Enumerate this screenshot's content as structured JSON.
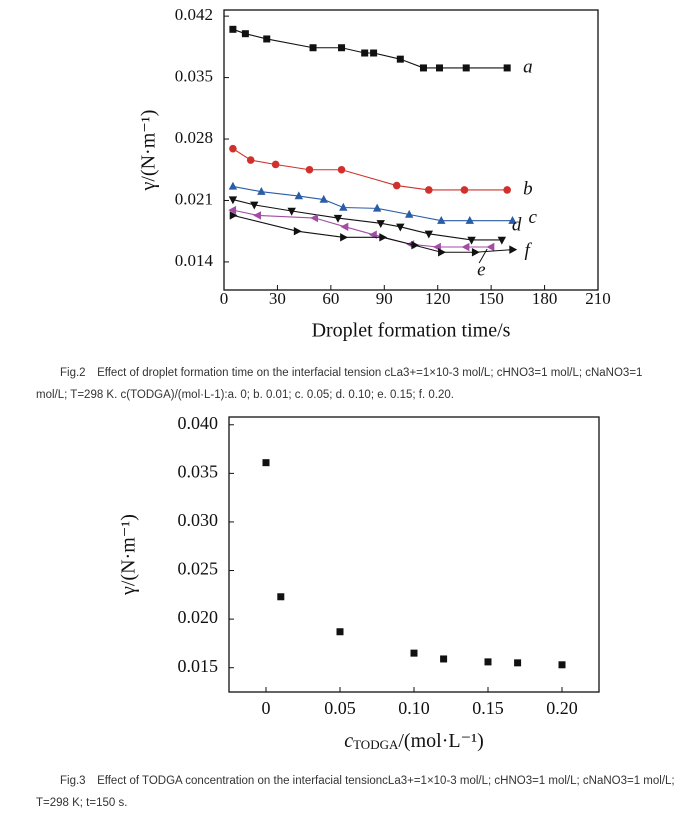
{
  "chart_data": [
    {
      "type": "line",
      "x_label": "Droplet formation time/s",
      "y_label": "γ/(N·m⁻¹)",
      "caption": "Fig.2　Effect of droplet formation time on the interfacial tension cLa3+=1×10-3 mol/L; cHNO3=1 mol/L; cNaNO3=1 mol/L; T=298 K. c(TODGA)/(mol·L-1):a. 0; b. 0.01; c. 0.05; d. 0.10; e. 0.15; f. 0.20.",
      "xlim": [
        0,
        210
      ],
      "xticks": [
        0,
        30,
        60,
        90,
        120,
        150,
        180,
        210
      ],
      "ylim": [
        0.0108,
        0.0427
      ],
      "yticks": [
        0.014,
        0.021,
        0.028,
        0.035,
        0.042
      ],
      "series": [
        {
          "name": "a",
          "color": "#111111",
          "marker": "square",
          "x": [
            5,
            12,
            24,
            50,
            66,
            79,
            84,
            99,
            112,
            121,
            136,
            159
          ],
          "values": [
            0.0405,
            0.04,
            0.0394,
            0.0384,
            0.0384,
            0.0378,
            0.0378,
            0.0371,
            0.0361,
            0.0361,
            0.0361,
            0.0361
          ]
        },
        {
          "name": "b",
          "color": "#d0312d",
          "marker": "circle",
          "x": [
            5,
            15,
            29,
            48,
            66,
            97,
            115,
            135,
            159
          ],
          "values": [
            0.0269,
            0.0256,
            0.0251,
            0.0245,
            0.0245,
            0.0227,
            0.0222,
            0.0222,
            0.0222
          ]
        },
        {
          "name": "c",
          "color": "#2a5ca8",
          "marker": "triangle-up",
          "x": [
            5,
            21,
            42,
            56,
            67,
            86,
            104,
            122,
            138,
            162
          ],
          "values": [
            0.0226,
            0.022,
            0.0215,
            0.0211,
            0.0202,
            0.0201,
            0.0194,
            0.0187,
            0.0187,
            0.0187
          ]
        },
        {
          "name": "d",
          "color": "#111111",
          "marker": "triangle-down",
          "x": [
            5,
            17,
            38,
            64,
            88,
            99,
            115,
            139,
            156
          ],
          "values": [
            0.0211,
            0.0205,
            0.0198,
            0.019,
            0.0184,
            0.018,
            0.0172,
            0.0165,
            0.0165
          ]
        },
        {
          "name": "e",
          "color": "#a24ca6",
          "marker": "triangle-left",
          "x": [
            5,
            19,
            51,
            68,
            84,
            105,
            120,
            136,
            150
          ],
          "values": [
            0.0199,
            0.0193,
            0.019,
            0.018,
            0.0171,
            0.016,
            0.0157,
            0.0157,
            0.0157
          ]
        },
        {
          "name": "f",
          "color": "#111111",
          "marker": "triangle-right",
          "x": [
            5,
            41,
            67,
            89,
            107,
            122,
            141,
            162
          ],
          "values": [
            0.0193,
            0.0175,
            0.0168,
            0.0168,
            0.0159,
            0.0151,
            0.0151,
            0.0154
          ]
        }
      ]
    },
    {
      "type": "scatter",
      "x_label": "c",
      "x_label_subscript": "TODGA",
      "x_label_unit": "/(mol·L⁻¹)",
      "y_label": "γ/(N·m⁻¹)",
      "caption": "Fig.3　Effect of TODGA concentration on the interfacial tensioncLa3+=1×10-3 mol/L; cHNO3=1 mol/L; cNaNO3=1 mol/L; T=298 K; t=150 s.",
      "xlim": [
        -0.025,
        0.225
      ],
      "xticks": [
        0,
        0.05,
        {
          "value": 0.1,
          "label": "0.10"
        },
        0.15,
        {
          "value": 0.2,
          "label": "0.20"
        }
      ],
      "ylim": [
        0.0125,
        0.0408
      ],
      "yticks": [
        0.015,
        {
          "value": 0.02,
          "label": "0.020"
        },
        0.025,
        {
          "value": 0.03,
          "label": "0.030"
        },
        0.035,
        {
          "value": 0.04,
          "label": "0.040"
        }
      ],
      "series": [
        {
          "color": "#111111",
          "marker": "square",
          "x": [
            0,
            0.01,
            0.05,
            0.1,
            0.12,
            0.15,
            0.17,
            0.2
          ],
          "values": [
            0.0361,
            0.0223,
            0.0187,
            0.0165,
            0.0159,
            0.0156,
            0.0155,
            0.0153
          ]
        }
      ]
    }
  ]
}
